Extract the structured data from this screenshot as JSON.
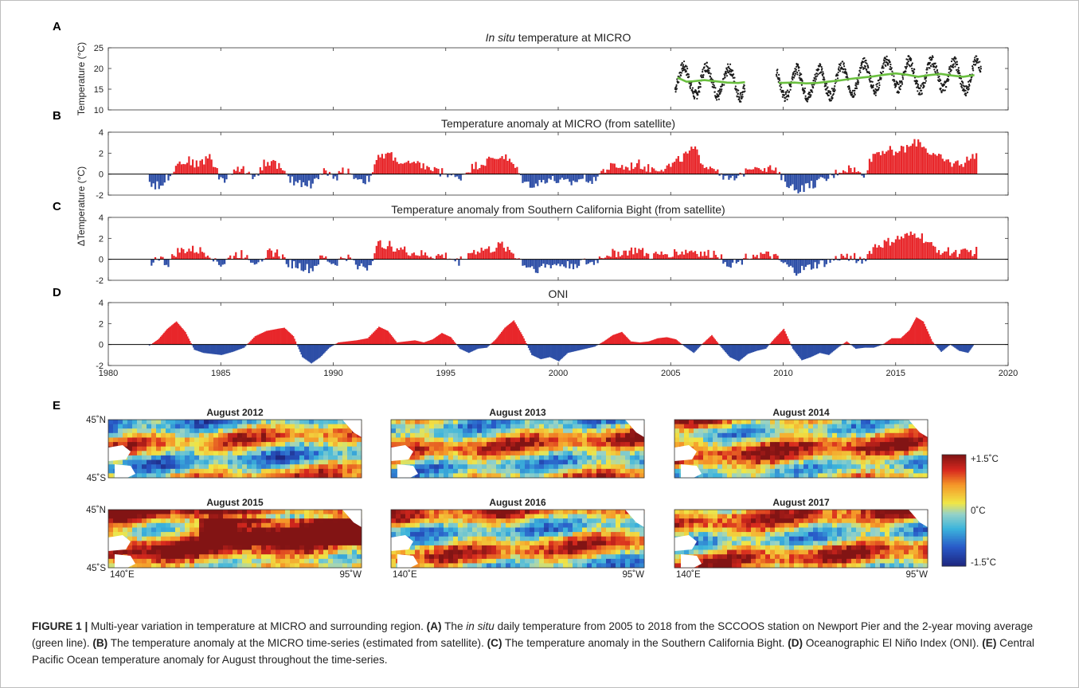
{
  "figure": {
    "panels": [
      {
        "letter": "A",
        "title_pre": "",
        "title_italic": "In situ",
        "title_post": " temperature at MICRO"
      },
      {
        "letter": "B",
        "title_pre": "Temperature anomaly at MICRO (from satellite)",
        "title_italic": "",
        "title_post": ""
      },
      {
        "letter": "C",
        "title_pre": "Temperature anomaly from Southern California Bight (from satellite)",
        "title_italic": "",
        "title_post": ""
      },
      {
        "letter": "D",
        "title_pre": "ONI",
        "title_italic": "",
        "title_post": ""
      },
      {
        "letter": "E",
        "title_pre": "",
        "title_italic": "",
        "title_post": ""
      }
    ],
    "ylabel_a": "Temperature (°C)",
    "ylabel_bc": "ΔTemperature (°C)",
    "caption": {
      "lead": "FIGURE 1 |",
      "t1": " Multi-year variation in temperature at MICRO and surrounding region. ",
      "a": "(A)",
      "t2": " The ",
      "a_italic": "in situ",
      "t3": " daily temperature from 2005 to 2018 from the SCCOOS station on Newport Pier and the 2-year moving average (green line). ",
      "b": "(B)",
      "t4": " The temperature anomaly at the MICRO time-series (estimated from satellite). ",
      "c": "(C)",
      "t5": " The temperature anomaly in the Southern California Bight. ",
      "d": "(D)",
      "t6": " Oceanographic El Niño Index (ONI). ",
      "e": "(E)",
      "t7": " Central Pacific Ocean temperature anomaly for August throughout the time-series."
    }
  },
  "chart_data": [
    {
      "type": "scatter",
      "title": "In situ temperature at MICRO",
      "ylabel": "Temperature (°C)",
      "xlim": [
        1980,
        2020
      ],
      "ylim": [
        10,
        25
      ],
      "yticks": [
        10,
        15,
        20,
        25
      ],
      "daily_segments": [
        [
          2005.2,
          2008.3
        ],
        [
          2009.7,
          2018.8
        ]
      ],
      "moving_average": {
        "x": [
          2005.3,
          2005.7,
          2006.0,
          2006.5,
          2007.0,
          2007.5,
          2008.0,
          2008.3,
          2009.8,
          2010.5,
          2011.0,
          2011.5,
          2012.0,
          2012.5,
          2013.0,
          2013.5,
          2014.0,
          2014.5,
          2015.0,
          2015.5,
          2016.0,
          2016.5,
          2017.0,
          2017.5,
          2018.0,
          2018.5
        ],
        "y": [
          17.8,
          16.8,
          16.9,
          17.2,
          16.9,
          16.6,
          16.5,
          16.7,
          16.5,
          16.6,
          16.4,
          16.5,
          16.8,
          17.1,
          17.5,
          17.8,
          18.1,
          18.5,
          18.8,
          18.5,
          18.0,
          18.4,
          18.7,
          18.3,
          18.0,
          18.4
        ]
      }
    },
    {
      "type": "bar",
      "title": "Temperature anomaly at MICRO (from satellite)",
      "xlim": [
        1980,
        2020
      ],
      "ylim": [
        -2,
        4
      ],
      "yticks": [
        -2,
        0,
        2,
        4
      ],
      "anomaly_x": [
        1981.8,
        1982.2,
        1982.6,
        1983.0,
        1983.5,
        1984.0,
        1984.5,
        1985.0,
        1985.5,
        1986.0,
        1986.5,
        1987.0,
        1987.5,
        1988.0,
        1988.5,
        1989.0,
        1989.5,
        1990.0,
        1990.5,
        1991.0,
        1991.5,
        1992.0,
        1992.5,
        1993.0,
        1993.5,
        1994.0,
        1994.5,
        1995.0,
        1995.5,
        1996.0,
        1996.5,
        1997.0,
        1997.5,
        1998.0,
        1998.5,
        1999.0,
        1999.5,
        2000.0,
        2000.5,
        2001.0,
        2001.5,
        2002.0,
        2002.5,
        2003.0,
        2003.5,
        2004.0,
        2004.5,
        2005.0,
        2005.5,
        2006.0,
        2006.5,
        2007.0,
        2007.5,
        2008.0,
        2008.5,
        2009.0,
        2009.5,
        2010.0,
        2010.5,
        2011.0,
        2011.5,
        2012.0,
        2012.5,
        2013.0,
        2013.5,
        2014.0,
        2014.5,
        2015.0,
        2015.5,
        2016.0,
        2016.5,
        2017.0,
        2017.5,
        2018.0,
        2018.5
      ],
      "anomaly_y": [
        -0.8,
        -1.2,
        -0.3,
        1.0,
        1.3,
        0.9,
        1.8,
        -0.8,
        0.3,
        0.4,
        -0.2,
        1.3,
        0.9,
        -0.6,
        -0.8,
        -1.0,
        0.3,
        -0.4,
        0.5,
        -0.4,
        -0.6,
        1.6,
        1.9,
        1.0,
        0.9,
        0.8,
        0.3,
        0.1,
        -0.5,
        0.5,
        1.0,
        1.4,
        1.8,
        0.8,
        -0.9,
        -1.0,
        -0.4,
        -0.7,
        -0.9,
        -0.4,
        -0.5,
        0.4,
        0.8,
        0.6,
        1.0,
        0.5,
        0.6,
        0.8,
        1.6,
        2.4,
        0.8,
        0.6,
        -0.6,
        -0.4,
        0.9,
        0.7,
        0.5,
        -0.6,
        -1.5,
        -1.2,
        -0.8,
        -0.4,
        0.4,
        0.6,
        -0.2,
        2.0,
        2.3,
        2.2,
        2.5,
        3.2,
        2.0,
        1.4,
        1.0,
        1.1,
        1.9
      ]
    },
    {
      "type": "bar",
      "title": "Temperature anomaly from Southern California Bight (from satellite)",
      "ylabel": "ΔTemperature (°C)",
      "xlim": [
        1980,
        2020
      ],
      "ylim": [
        -2,
        4
      ],
      "yticks": [
        -2,
        0,
        2,
        4
      ],
      "anomaly_x": [
        1981.8,
        1982.2,
        1982.6,
        1983.0,
        1983.5,
        1984.0,
        1984.5,
        1985.0,
        1985.5,
        1986.0,
        1986.5,
        1987.0,
        1987.5,
        1988.0,
        1988.5,
        1989.0,
        1989.5,
        1990.0,
        1990.5,
        1991.0,
        1991.5,
        1992.0,
        1992.5,
        1993.0,
        1993.5,
        1994.0,
        1994.5,
        1995.0,
        1995.5,
        1996.0,
        1996.5,
        1997.0,
        1997.5,
        1998.0,
        1998.5,
        1999.0,
        1999.5,
        2000.0,
        2000.5,
        2001.0,
        2001.5,
        2002.0,
        2002.5,
        2003.0,
        2003.5,
        2004.0,
        2004.5,
        2005.0,
        2005.5,
        2006.0,
        2006.5,
        2007.0,
        2007.5,
        2008.0,
        2008.5,
        2009.0,
        2009.5,
        2010.0,
        2010.5,
        2011.0,
        2011.5,
        2012.0,
        2012.5,
        2013.0,
        2013.5,
        2014.0,
        2014.5,
        2015.0,
        2015.5,
        2016.0,
        2016.5,
        2017.0,
        2017.5,
        2018.0,
        2018.5
      ],
      "anomaly_y": [
        -0.3,
        0.2,
        -0.5,
        0.7,
        0.9,
        0.8,
        0.5,
        -0.6,
        0.4,
        0.5,
        -0.3,
        0.6,
        0.6,
        -0.4,
        -0.7,
        -1.0,
        0.2,
        -0.5,
        0.3,
        -0.5,
        -0.8,
        1.5,
        1.3,
        0.9,
        0.6,
        0.4,
        0.3,
        0.3,
        -0.3,
        0.6,
        0.9,
        0.9,
        1.4,
        0.5,
        -0.6,
        -0.9,
        -0.6,
        -0.5,
        -0.6,
        -0.3,
        -0.4,
        0.4,
        0.6,
        0.7,
        0.9,
        0.3,
        0.4,
        0.6,
        0.7,
        0.8,
        0.4,
        0.6,
        -0.4,
        -0.3,
        0.5,
        0.4,
        0.3,
        -0.5,
        -1.2,
        -0.9,
        -0.5,
        -0.3,
        0.2,
        0.3,
        -0.2,
        1.2,
        1.5,
        1.9,
        2.2,
        2.4,
        1.3,
        0.8,
        0.7,
        0.6,
        0.8
      ]
    },
    {
      "type": "area",
      "title": "ONI",
      "xlim": [
        1980,
        2020
      ],
      "ylim": [
        -2,
        4
      ],
      "yticks": [
        -2,
        0,
        2,
        4
      ],
      "xticks": [
        1980,
        1985,
        1990,
        1995,
        2000,
        2005,
        2010,
        2015,
        2020
      ],
      "x": [
        1981.8,
        1982.2,
        1982.6,
        1983.0,
        1983.4,
        1983.8,
        1984.2,
        1984.6,
        1985.0,
        1985.5,
        1986.0,
        1986.5,
        1987.0,
        1987.5,
        1987.8,
        1988.2,
        1988.6,
        1989.0,
        1989.4,
        1989.8,
        1990.2,
        1990.6,
        1991.0,
        1991.5,
        1992.0,
        1992.4,
        1992.8,
        1993.2,
        1993.6,
        1994.0,
        1994.4,
        1994.8,
        1995.2,
        1995.6,
        1996.0,
        1996.4,
        1996.8,
        1997.2,
        1997.6,
        1998.0,
        1998.4,
        1998.8,
        1999.2,
        1999.6,
        2000.0,
        2000.4,
        2000.8,
        2001.2,
        2001.6,
        2002.0,
        2002.4,
        2002.8,
        2003.2,
        2003.6,
        2004.0,
        2004.4,
        2004.8,
        2005.2,
        2005.6,
        2006.0,
        2006.4,
        2006.8,
        2007.2,
        2007.6,
        2008.0,
        2008.4,
        2008.8,
        2009.2,
        2009.6,
        2010.0,
        2010.4,
        2010.8,
        2011.2,
        2011.6,
        2012.0,
        2012.4,
        2012.8,
        2013.2,
        2013.6,
        2014.0,
        2014.4,
        2014.8,
        2015.2,
        2015.6,
        2015.9,
        2016.2,
        2016.6,
        2017.0,
        2017.4,
        2017.8,
        2018.2,
        2018.5
      ],
      "y": [
        -0.1,
        0.5,
        1.5,
        2.2,
        1.2,
        -0.5,
        -0.8,
        -0.9,
        -1.0,
        -0.7,
        -0.3,
        0.8,
        1.3,
        1.5,
        1.6,
        0.8,
        -1.2,
        -1.8,
        -1.2,
        -0.3,
        0.2,
        0.3,
        0.4,
        0.6,
        1.7,
        1.3,
        0.2,
        0.3,
        0.4,
        0.2,
        0.5,
        1.1,
        0.7,
        -0.4,
        -0.8,
        -0.4,
        -0.3,
        0.5,
        1.6,
        2.3,
        0.8,
        -1.0,
        -1.4,
        -1.2,
        -1.6,
        -0.8,
        -0.6,
        -0.4,
        -0.2,
        0.3,
        0.9,
        1.2,
        0.3,
        0.2,
        0.3,
        0.6,
        0.7,
        0.5,
        -0.2,
        -0.8,
        0.1,
        0.9,
        -0.2,
        -1.2,
        -1.6,
        -0.9,
        -0.6,
        -0.4,
        0.6,
        1.5,
        -0.4,
        -1.5,
        -1.2,
        -0.8,
        -1.0,
        -0.3,
        0.3,
        -0.4,
        -0.3,
        -0.3,
        0.0,
        0.6,
        0.6,
        1.4,
        2.6,
        2.2,
        0.3,
        -0.7,
        0.0,
        -0.6,
        -0.8,
        0.1
      ]
    },
    {
      "type": "heatmap",
      "maps": [
        {
          "title": "August 2012",
          "mean_anomaly": 0.1
        },
        {
          "title": "August 2013",
          "mean_anomaly": 0.3
        },
        {
          "title": "August 2014",
          "mean_anomaly": 0.5
        },
        {
          "title": "August 2015",
          "mean_anomaly": 0.9
        },
        {
          "title": "August 2016",
          "mean_anomaly": 0.3
        },
        {
          "title": "August 2017",
          "mean_anomaly": 0.4
        }
      ],
      "lat_labels": [
        "45˚N",
        "45˚S"
      ],
      "lon_labels": [
        "140˚E",
        "95˚W"
      ],
      "colorbar": {
        "labels": [
          "+1.5˚C",
          "0˚C",
          "-1.5˚C"
        ],
        "range": [
          -1.5,
          1.5
        ]
      }
    }
  ]
}
